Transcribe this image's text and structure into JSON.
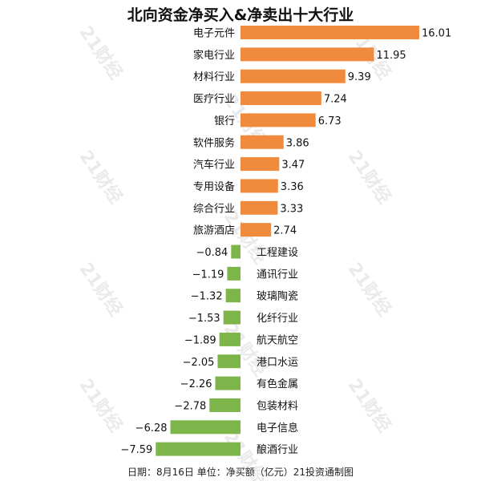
{
  "title": "北向资金净买入&净卖出十大行业",
  "footer": "日期：8月16日 单位：净买额（亿元）21投资通制图",
  "watermark": "21财经",
  "colors": {
    "positive": "#F08A3C",
    "negative": "#7DB54A",
    "text": "#111111",
    "watermark": "#d9d9d9"
  },
  "chart_data": {
    "type": "bar",
    "orientation": "horizontal",
    "title": "北向资金净买入&净卖出十大行业",
    "categories": [
      "电子元件",
      "家电行业",
      "材料行业",
      "医疗行业",
      "银行",
      "软件服务",
      "汽车行业",
      "专用设备",
      "综合行业",
      "旅游酒店",
      "工程建设",
      "通讯行业",
      "玻璃陶瓷",
      "化纤行业",
      "航天航空",
      "港口水运",
      "有色金属",
      "包装材料",
      "电子信息",
      "酿酒行业"
    ],
    "values": [
      16.01,
      11.95,
      9.39,
      7.24,
      6.73,
      3.86,
      3.47,
      3.36,
      3.33,
      2.74,
      -0.84,
      -1.19,
      -1.32,
      -1.53,
      -1.89,
      -2.05,
      -2.26,
      -2.78,
      -6.28,
      -7.59
    ],
    "value_labels": [
      "16.01",
      "11.95",
      "9.39",
      "7.24",
      "6.73",
      "3.86",
      "3.47",
      "3.36",
      "3.33",
      "2.74",
      "−0.84",
      "−1.19",
      "−1.32",
      "−1.53",
      "−1.89",
      "−2.05",
      "−2.26",
      "−2.78",
      "−6.28",
      "−7.59"
    ],
    "units": "亿元",
    "grid": false
  }
}
